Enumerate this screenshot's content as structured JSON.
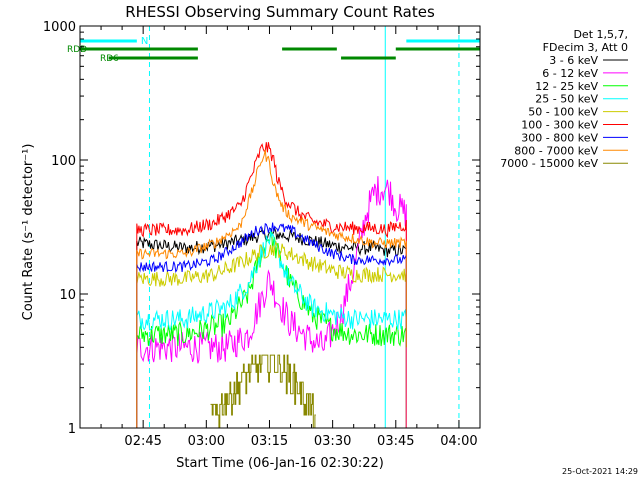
{
  "chart_data": {
    "type": "line",
    "title": "RHESSI Observing Summary Count Rates",
    "xlabel": "Start Time (06-Jan-16 02:30:22)",
    "ylabel": "Count Rate (s⁻¹ detector⁻¹)",
    "yscale": "log",
    "ylim": [
      1,
      1000
    ],
    "xlim_minutes_after_0230": [
      0,
      95
    ],
    "x_tick_labels": [
      "02:45",
      "03:00",
      "03:15",
      "03:30",
      "03:45",
      "04:00"
    ],
    "x_tick_minutes": [
      15,
      30,
      45,
      60,
      75,
      90
    ],
    "y_tick_labels": [
      "1",
      "10",
      "100",
      "1000"
    ],
    "y_tick_values": [
      1,
      10,
      100,
      1000
    ],
    "legend_header": [
      "Det 1,5,7,",
      "FDecim 3, Att 0"
    ],
    "legend_position": "right",
    "data_start_minute": 13.5,
    "data_end_minute": 77.5,
    "series": [
      {
        "name": "3 - 6 keV",
        "color": "#000000",
        "x": [
          13.5,
          25,
          32,
          38,
          42,
          46,
          50,
          55,
          60,
          65,
          70,
          73,
          75,
          77.5
        ],
        "y": [
          24,
          22,
          23,
          25,
          27,
          28,
          27,
          25,
          23,
          22,
          22,
          21,
          21,
          21
        ]
      },
      {
        "name": "6 - 12 keV",
        "color": "#ff00ff",
        "x": [
          13.5,
          25,
          35,
          40,
          43,
          45,
          47,
          50,
          55,
          58,
          62,
          65,
          68,
          70,
          72,
          73.5,
          75,
          77.5
        ],
        "y": [
          4.0,
          4.0,
          4.0,
          5.0,
          9.0,
          13.0,
          9.0,
          6.0,
          4.5,
          4.0,
          7.0,
          15.0,
          40.0,
          58.0,
          62.0,
          60.0,
          45.0,
          40.0
        ]
      },
      {
        "name": "12 - 25 keV",
        "color": "#00ff00",
        "x": [
          13.5,
          25,
          35,
          40,
          43,
          45,
          47,
          50,
          55,
          60,
          65,
          70,
          75,
          77.5
        ],
        "y": [
          5.0,
          5.0,
          6.0,
          10.0,
          20.0,
          28.0,
          20.0,
          12.0,
          7.0,
          5.5,
          5.0,
          5.0,
          5.0,
          5.0
        ]
      },
      {
        "name": "25 - 50 keV",
        "color": "#00ffff",
        "x": [
          13.5,
          25,
          35,
          40,
          43,
          45,
          47,
          50,
          55,
          60,
          65,
          70,
          75,
          77.5
        ],
        "y": [
          6.5,
          6.5,
          8.0,
          12.0,
          20.0,
          26.0,
          20.0,
          12.0,
          8.0,
          7.0,
          6.5,
          6.5,
          6.5,
          6.5
        ]
      },
      {
        "name": "50 - 100 keV",
        "color": "#cccc00",
        "x": [
          13.5,
          25,
          32,
          38,
          42,
          46,
          50,
          55,
          60,
          65,
          70,
          73,
          75,
          77.5
        ],
        "y": [
          13.0,
          13.0,
          14.0,
          17.0,
          20.0,
          22.0,
          20.0,
          17.0,
          15.0,
          14.0,
          14.0,
          14.0,
          14.0,
          14.0
        ]
      },
      {
        "name": "100 - 300 keV",
        "color": "#ff0000",
        "x": [
          13.5,
          25,
          32,
          38,
          41,
          43,
          44,
          45,
          46,
          47,
          49,
          52,
          55,
          60,
          65,
          70,
          73,
          75,
          77.5
        ],
        "y": [
          30,
          30,
          34,
          45,
          80,
          120,
          125,
          120,
          100,
          70,
          50,
          40,
          35,
          32,
          31,
          31,
          30,
          32,
          33
        ]
      },
      {
        "name": "300 - 800 keV",
        "color": "#0000ff",
        "x": [
          13.5,
          25,
          32,
          38,
          42,
          46,
          50,
          55,
          60,
          65,
          70,
          73,
          75,
          77.5
        ],
        "y": [
          16,
          16,
          18,
          24,
          30,
          32,
          30,
          24,
          20,
          18,
          18,
          18,
          18,
          18
        ]
      },
      {
        "name": "800 - 7000 keV",
        "color": "#ff8800",
        "x": [
          13.5,
          25,
          32,
          38,
          41,
          43,
          44,
          45,
          46,
          48,
          50,
          55,
          60,
          65,
          70,
          73,
          75,
          77.5
        ],
        "y": [
          20,
          20,
          24,
          32,
          60,
          100,
          110,
          95,
          65,
          45,
          38,
          32,
          28,
          26,
          24,
          24,
          24,
          24
        ]
      },
      {
        "name": "7000 - 15000 keV",
        "color": "#888800",
        "x": [
          31,
          35,
          38,
          40,
          42,
          44,
          45,
          46,
          47,
          48,
          50,
          52,
          54,
          56
        ],
        "y": [
          1.2,
          1.7,
          2.2,
          2.6,
          2.9,
          3.2,
          3.3,
          3.2,
          3.0,
          2.8,
          2.4,
          2.0,
          1.6,
          1.2
        ]
      }
    ],
    "annotations": [
      {
        "label": "N",
        "color": "#00ffff",
        "note": "night band",
        "from_minute": 0,
        "to_minute": 13.5,
        "from2_minute": 77.5,
        "to2_minute": 95
      },
      {
        "label": "RDD",
        "color": "#008800",
        "segments": [
          [
            0,
            28
          ],
          [
            48,
            61
          ],
          [
            75,
            95
          ]
        ]
      },
      {
        "label": "RD6",
        "color": "#008800",
        "segments": [
          [
            3,
            28
          ],
          [
            62,
            75
          ]
        ]
      }
    ],
    "vlines_solid_minutes": [
      0,
      72.5
    ],
    "vlines_dashed_minutes": [
      16.5,
      90
    ],
    "vlines_red_minutes": [
      77.5
    ],
    "grid": false
  },
  "footer": {
    "date_stamp": "25-Oct-2021 14:29"
  }
}
